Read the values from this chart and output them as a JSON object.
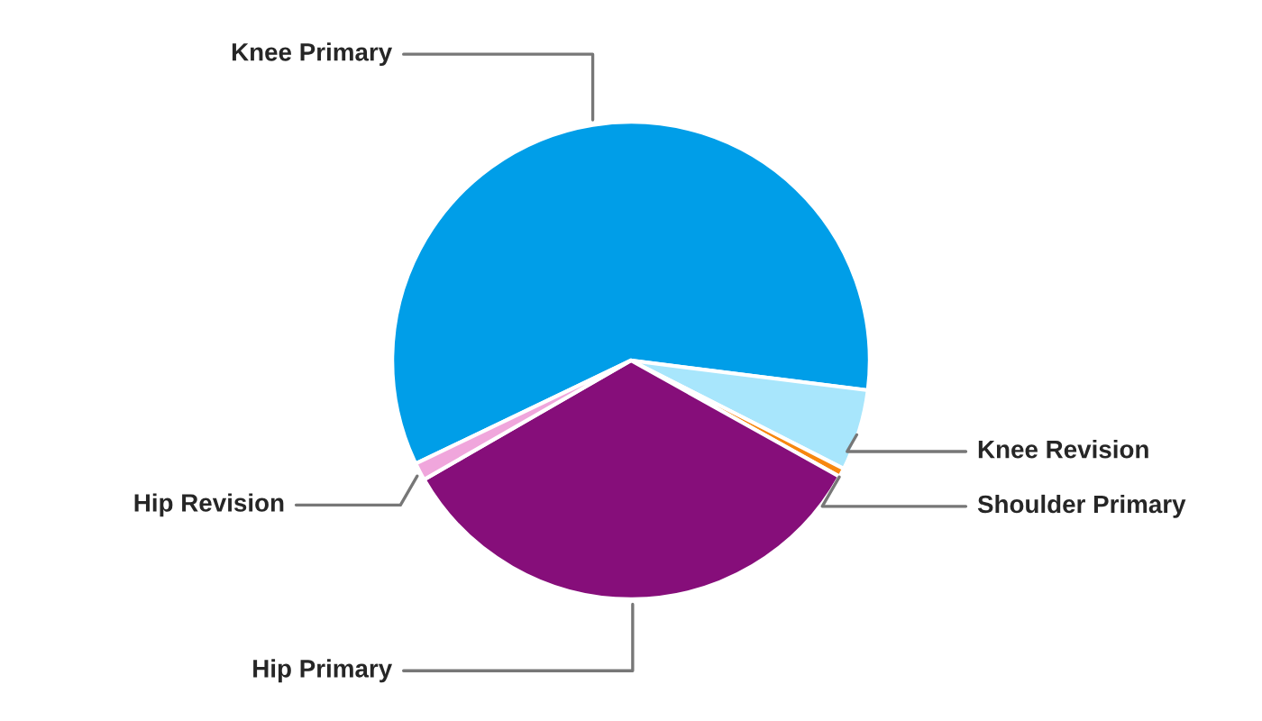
{
  "chart_data": {
    "type": "pie",
    "categories": [
      "Knee Primary",
      "Knee Revision",
      "Shoulder Primary",
      "Hip Primary",
      "Hip Revision"
    ],
    "values": [
      59.1,
      5.5,
      0.6,
      33.6,
      1.2
    ],
    "colors": [
      "#009ee8",
      "#a8e6fc",
      "#f7870f",
      "#860e7a",
      "#f0a6dc"
    ],
    "legend": false
  }
}
